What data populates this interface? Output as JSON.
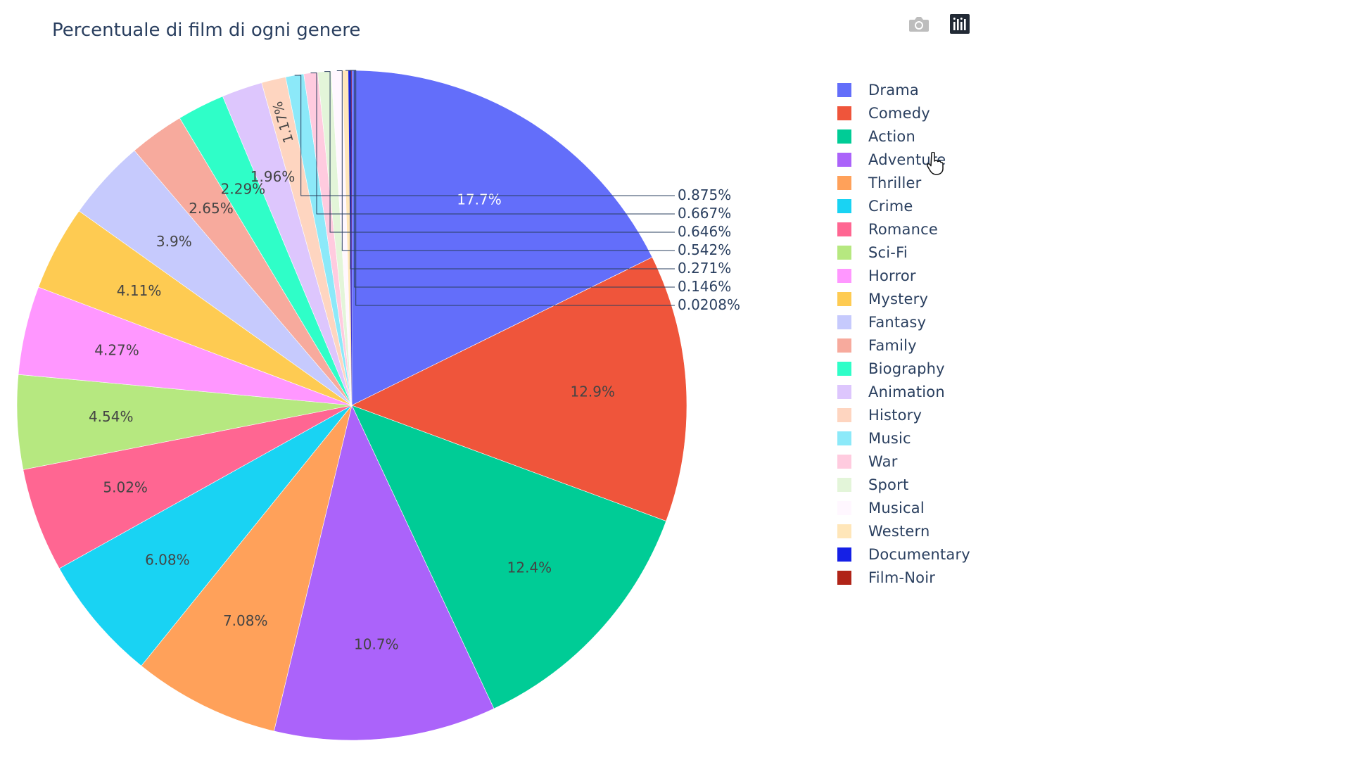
{
  "toolbar": {
    "camera_icon": "camera-icon",
    "plotly_logo_icon": "plotly-logo-icon"
  },
  "chart_data": {
    "type": "pie",
    "title": "Percentuale di film di ogni genere",
    "legend_position": "right",
    "slices": [
      {
        "label": "Drama",
        "value": 17.7,
        "text": "17.7%",
        "color": "#636efa"
      },
      {
        "label": "Comedy",
        "value": 12.9,
        "text": "12.9%",
        "color": "#ef553b"
      },
      {
        "label": "Action",
        "value": 12.4,
        "text": "12.4%",
        "color": "#00cc96"
      },
      {
        "label": "Adventure",
        "value": 10.7,
        "text": "10.7%",
        "color": "#ab63fa"
      },
      {
        "label": "Thriller",
        "value": 7.08,
        "text": "7.08%",
        "color": "#ffa15a"
      },
      {
        "label": "Crime",
        "value": 6.08,
        "text": "6.08%",
        "color": "#19d3f3"
      },
      {
        "label": "Romance",
        "value": 5.02,
        "text": "5.02%",
        "color": "#ff6692"
      },
      {
        "label": "Sci-Fi",
        "value": 4.54,
        "text": "4.54%",
        "color": "#b6e880"
      },
      {
        "label": "Horror",
        "value": 4.27,
        "text": "4.27%",
        "color": "#ff97ff"
      },
      {
        "label": "Mystery",
        "value": 4.11,
        "text": "4.11%",
        "color": "#fecb52"
      },
      {
        "label": "Fantasy",
        "value": 3.9,
        "text": "3.9%",
        "color": "#c6cafd"
      },
      {
        "label": "Family",
        "value": 2.65,
        "text": "2.65%",
        "color": "#f7aa9d"
      },
      {
        "label": "Biography",
        "value": 2.29,
        "text": "2.29%",
        "color": "#2ffec8"
      },
      {
        "label": "Animation",
        "value": 1.96,
        "text": "1.96%",
        "color": "#ddc6fd"
      },
      {
        "label": "History",
        "value": 1.17,
        "text": "1.17%",
        "color": "#fed5c0"
      },
      {
        "label": "Music",
        "value": 0.875,
        "text": "0.875%",
        "color": "#8ce9f9"
      },
      {
        "label": "War",
        "value": 0.667,
        "text": "0.667%",
        "color": "#ffcbdf"
      },
      {
        "label": "Sport",
        "value": 0.646,
        "text": "0.646%",
        "color": "#e3f5d9"
      },
      {
        "label": "Musical",
        "value": 0.542,
        "text": "0.542%",
        "color": "#fff7ff"
      },
      {
        "label": "Western",
        "value": 0.271,
        "text": "0.271%",
        "color": "#ffe6b9"
      },
      {
        "label": "Documentary",
        "value": 0.146,
        "text": "0.146%",
        "color": "#1520e6"
      },
      {
        "label": "Film-Noir",
        "value": 0.0208,
        "text": "0.0208%",
        "color": "#b02418"
      }
    ]
  }
}
